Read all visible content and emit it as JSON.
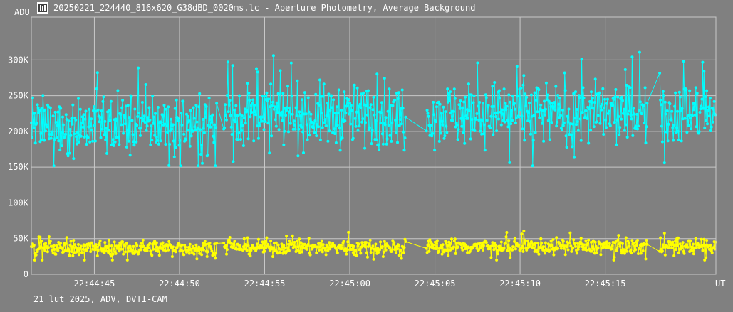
{
  "window": {
    "title": "20250221_224440_816x620_G38dBD_0020ms.lc - Aperture Photometry, Average Background",
    "icon": "lightcurve-app-icon",
    "footer": "21 lut 2025, ADV, DVTI-CAM"
  },
  "colors": {
    "background": "#808080",
    "grid": "#c8c8c8",
    "target_series": "#00ffff",
    "background_series": "#ffff00",
    "text": "#ffffff"
  },
  "chart_data": {
    "type": "line",
    "title": "",
    "ylabel": "ADU",
    "xlabel": "UT",
    "ylim": [
      0,
      360000
    ],
    "xlim_seconds": [
      41.3,
      81.5
    ],
    "y_ticks": [
      0,
      50000,
      100000,
      150000,
      200000,
      250000,
      300000
    ],
    "y_tick_labels": [
      "0",
      "50K",
      "100K",
      "150K",
      "200K",
      "250K",
      "300K"
    ],
    "x_ticks": [
      "22:44:45",
      "22:44:50",
      "22:44:55",
      "22:45:00",
      "22:45:05",
      "22:45:10",
      "22:45:15"
    ],
    "x_ticks_seconds": [
      45,
      50,
      55,
      60,
      65,
      70,
      75
    ],
    "grid": true,
    "gaps_seconds": [
      [
        52.2,
        52.6
      ],
      [
        63.3,
        64.5
      ],
      [
        77.5,
        78.2
      ]
    ],
    "series": [
      {
        "label_note": "target (cyan)",
        "mean": 215000,
        "segment_means": [
          210000,
          222000,
          225000
        ],
        "scatter": 22000,
        "min": 152000,
        "max": 318000
      },
      {
        "label_note": "background (yellow)",
        "mean": 37000,
        "segment_means": [
          37000,
          38000,
          39000
        ],
        "scatter": 5500,
        "min": 20000,
        "max": 63000
      }
    ]
  }
}
